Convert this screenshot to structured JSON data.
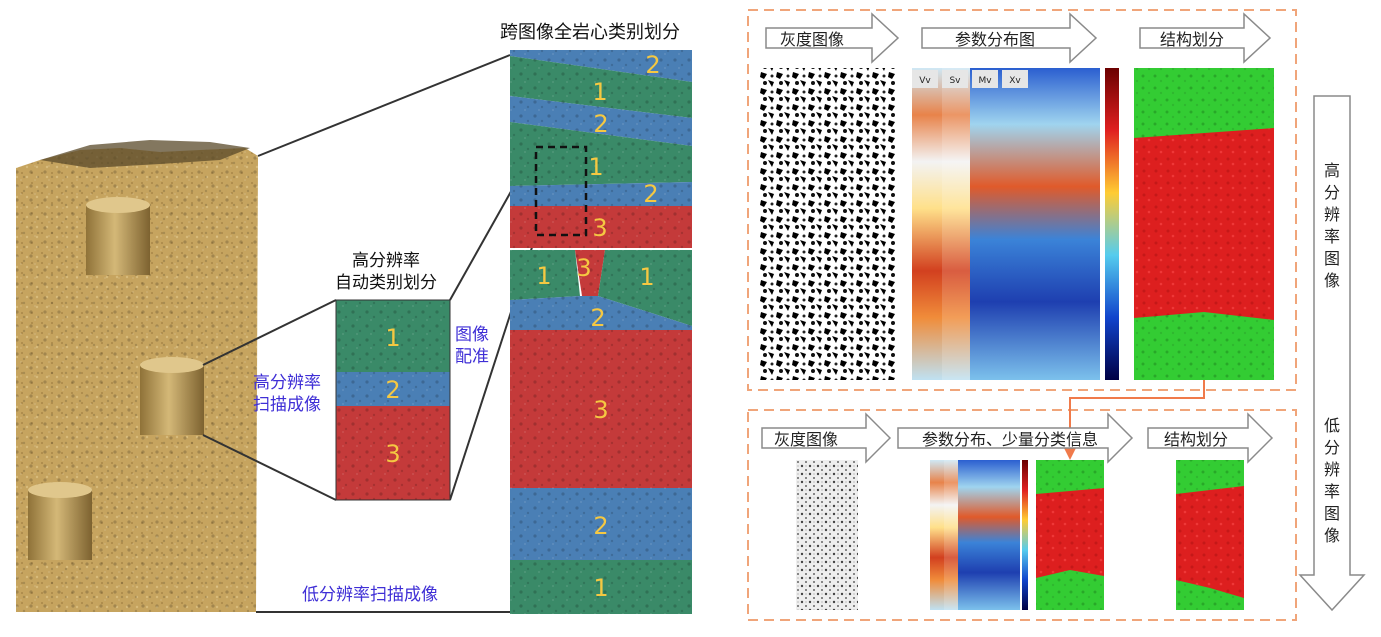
{
  "left": {
    "cross_title": "跨图像全岩心类别划分",
    "hr_title_line1": "高分辨率",
    "hr_title_line2": "自动类别划分",
    "hr_scan_line1": "高分辨率",
    "hr_scan_line2": "扫描成像",
    "registration_line1": "图像",
    "registration_line2": "配准",
    "lr_scan": "低分辨率扫描成像",
    "hr_segments": [
      "1",
      "2",
      "3"
    ],
    "column_segments": [
      "2",
      "1",
      "2",
      "1",
      "2",
      "3",
      "1",
      "3",
      "1",
      "2",
      "3",
      "2",
      "1"
    ]
  },
  "right": {
    "top": {
      "steps": [
        "灰度图像",
        "参数分布图",
        "结构划分"
      ],
      "param_columns": [
        "Vv",
        "Sv",
        "Mv",
        "Xv"
      ]
    },
    "bottom": {
      "steps": [
        "灰度图像",
        "参数分布、少量分类信息",
        "结构划分"
      ]
    },
    "side_high": "高分辨率图像",
    "side_low": "低分辨率图像"
  },
  "colors": {
    "green": "#2e8b57",
    "blue": "#3f78b5",
    "red": "#c0282d",
    "core": "#c9a55e",
    "dashed_frame": "#f0a57a",
    "label_blue": "#3f2fd6",
    "bright_green": "#33cc33",
    "bright_red": "#dd1f1f"
  }
}
